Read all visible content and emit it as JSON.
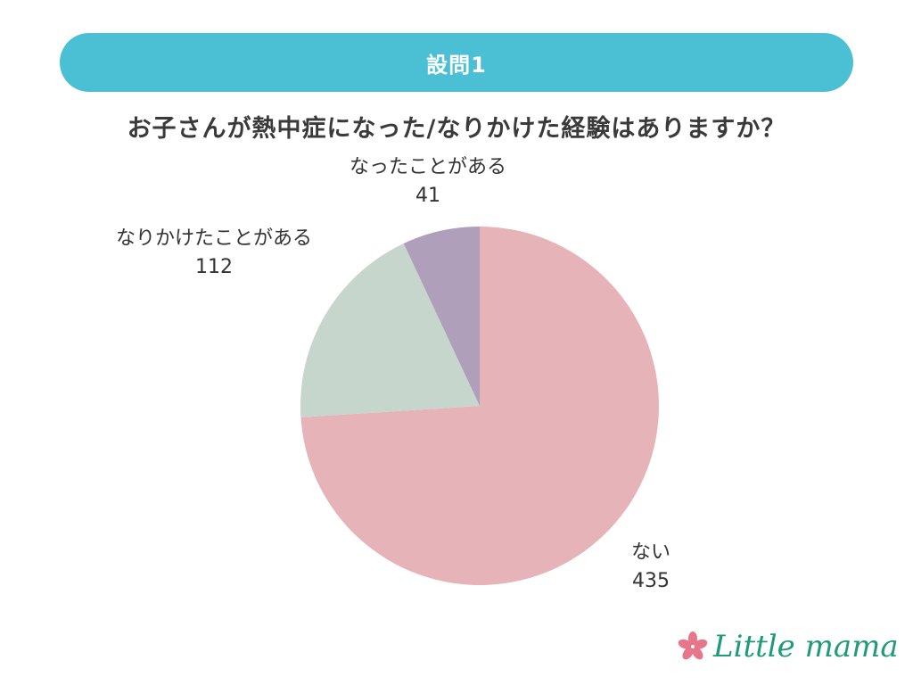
{
  "header": {
    "title": "設問1"
  },
  "question": "お子さんが熱中症になった/なりかけた経験はありますか？",
  "labels": {
    "none": {
      "name": "ない",
      "value": "435"
    },
    "almost": {
      "name": "なりかけたことがある",
      "value": "112"
    },
    "had": {
      "name": "なったことがある",
      "value": "41"
    }
  },
  "logo": {
    "text": "Little mama"
  },
  "colors": {
    "banner": "#4bbfd3",
    "none": "#e6b4b8",
    "almost": "#c6d6cc",
    "had": "#b09fba",
    "logo": "#1f9a7a",
    "flower": "#e8768a"
  },
  "chart_data": {
    "type": "pie",
    "title": "お子さんが熱中症になった/なりかけた経験はありますか？",
    "categories": [
      "ない",
      "なりかけたことがある",
      "なったことがある"
    ],
    "values": [
      435,
      112,
      41
    ],
    "colors": [
      "#e6b4b8",
      "#c6d6cc",
      "#b09fba"
    ],
    "start_angle": "12 o'clock, clockwise"
  }
}
